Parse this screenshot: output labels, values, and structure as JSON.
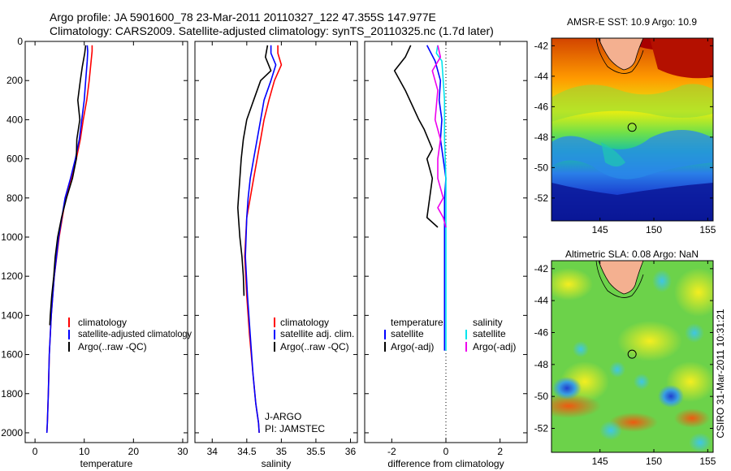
{
  "header": {
    "line1": "Argo profile: JA 5901600_78 23-Mar-2011 20110327_122 47.355S 147.977E",
    "line2": "Climatology: CARS2009. Satellite-adjusted climatology: synTS_20110325.nc (1.7d later)"
  },
  "colors": {
    "climatology": "#ff0000",
    "satellite": "#0000ff",
    "argo": "#000000",
    "salinity_satellite": "#00e5ee",
    "salinity_argo": "#ee00ee"
  },
  "chart_data": [
    {
      "type": "line",
      "panel": "temperature",
      "xlabel": "temperature",
      "ylabel": "",
      "xlim": [
        -2,
        31
      ],
      "ylim": [
        2050,
        0
      ],
      "xticks": [
        0,
        10,
        20,
        30
      ],
      "yticks": [
        0,
        200,
        400,
        600,
        800,
        1000,
        1200,
        1400,
        1600,
        1800,
        2000
      ],
      "xtick_labels": [
        "0",
        "10",
        "20",
        "30"
      ],
      "ytick_labels": [
        "0",
        "200",
        "400",
        "600",
        "800",
        "1000",
        "1200",
        "1400",
        "1600",
        "1800",
        "2000"
      ],
      "legend": [
        "climatology",
        "satellite-adjusted climatology",
        "Argo(..raw -QC)"
      ],
      "series": [
        {
          "name": "climatology",
          "color": "#ff0000",
          "x": [
            11.6,
            11.6,
            11.4,
            11.0,
            10.5,
            9.8,
            9.2,
            8.4,
            7.4,
            6.2,
            4.9,
            3.9,
            3.3,
            2.9,
            2.7,
            2.5,
            2.4
          ],
          "y": [
            20,
            50,
            100,
            200,
            300,
            400,
            500,
            600,
            700,
            800,
            1000,
            1200,
            1400,
            1600,
            1800,
            1950,
            2000
          ]
        },
        {
          "name": "satellite-adjusted climatology",
          "color": "#0000ff",
          "x": [
            10.6,
            10.7,
            10.6,
            10.3,
            10.0,
            9.5,
            9.0,
            8.2,
            7.2,
            6.1,
            4.8,
            3.9,
            3.3,
            2.9,
            2.7,
            2.5,
            2.4
          ],
          "y": [
            20,
            50,
            100,
            200,
            300,
            400,
            500,
            600,
            700,
            800,
            1000,
            1200,
            1400,
            1600,
            1800,
            1950,
            2000
          ]
        },
        {
          "name": "Argo(..raw -QC)",
          "color": "#000000",
          "x": [
            10.3,
            10.1,
            9.6,
            9.2,
            8.7,
            9.1,
            8.5,
            8.4,
            7.6,
            6.4,
            5.4,
            4.6,
            4.1,
            3.8,
            3.4,
            3.1,
            3.0
          ],
          "y": [
            20,
            60,
            130,
            200,
            300,
            400,
            500,
            600,
            700,
            800,
            900,
            1000,
            1100,
            1200,
            1300,
            1400,
            1450
          ]
        }
      ]
    },
    {
      "type": "line",
      "panel": "salinity",
      "xlabel": "salinity",
      "ylabel": "",
      "xlim": [
        33.75,
        36.1
      ],
      "ylim": [
        2050,
        0
      ],
      "xticks": [
        34,
        34.5,
        35,
        35.5,
        36
      ],
      "xtick_labels": [
        "34",
        "34.5",
        "35",
        "35.5",
        "36"
      ],
      "legend": [
        "climatology",
        "satellite adj. clim.",
        "Argo(..raw -QC)"
      ],
      "annotations": [
        "J-ARGO",
        "PI: JAMSTEC"
      ],
      "series": [
        {
          "name": "climatology",
          "color": "#ff0000",
          "x": [
            34.95,
            34.95,
            35.0,
            34.9,
            34.82,
            34.75,
            34.7,
            34.65,
            34.6,
            34.55,
            34.5,
            34.47,
            34.5,
            34.54,
            34.59,
            34.63,
            34.67,
            34.68
          ],
          "y": [
            20,
            60,
            120,
            200,
            300,
            400,
            500,
            600,
            700,
            800,
            900,
            1100,
            1300,
            1500,
            1700,
            1850,
            1950,
            2000
          ]
        },
        {
          "name": "satellite adj. clim.",
          "color": "#0000ff",
          "x": [
            34.85,
            34.85,
            34.92,
            34.85,
            34.75,
            34.7,
            34.65,
            34.6,
            34.55,
            34.52,
            34.5,
            34.48,
            34.51,
            34.55,
            34.59,
            34.63,
            34.67,
            34.68
          ],
          "y": [
            20,
            60,
            120,
            200,
            300,
            400,
            500,
            600,
            700,
            800,
            900,
            1100,
            1300,
            1500,
            1700,
            1850,
            1950,
            2000
          ]
        },
        {
          "name": "Argo(..raw -QC)",
          "color": "#000000",
          "x": [
            34.8,
            34.77,
            34.85,
            34.7,
            34.6,
            34.5,
            34.45,
            34.42,
            34.4,
            34.38,
            34.37,
            34.38,
            34.4,
            34.43,
            34.45,
            34.46
          ],
          "y": [
            20,
            80,
            150,
            200,
            300,
            400,
            500,
            600,
            700,
            800,
            850,
            900,
            1000,
            1100,
            1200,
            1300
          ]
        }
      ]
    },
    {
      "type": "line",
      "panel": "difference",
      "xlabel": "difference from climatology",
      "ylabel": "",
      "xlim": [
        -3,
        3
      ],
      "ylim": [
        2050,
        0
      ],
      "xticks": [
        -2,
        0,
        2
      ],
      "xtick_labels": [
        "-2",
        "0",
        "2"
      ],
      "legend_headers": [
        "temperature",
        "salinity"
      ],
      "legend": [
        "satellite",
        "Argo(-adj)",
        "satellite",
        "Argo(-adj)"
      ],
      "series": [
        {
          "name": "satellite",
          "color": "#0000ff",
          "x": [
            -0.7,
            -0.55,
            -0.4,
            -0.3,
            -0.2,
            -0.25,
            -0.15,
            -0.2,
            -0.1,
            0.0,
            -0.05,
            -0.05,
            -0.05,
            -0.05,
            -0.05,
            -0.05
          ],
          "y": [
            20,
            60,
            100,
            150,
            200,
            300,
            400,
            500,
            600,
            700,
            800,
            1000,
            1200,
            1400,
            1550,
            1580
          ]
        },
        {
          "name": "Argo(-adj)",
          "color": "#000000",
          "x": [
            -1.3,
            -1.5,
            -1.9,
            -1.5,
            -1.0,
            -0.8,
            -0.5,
            -0.7,
            -0.5,
            -0.6,
            -0.7,
            -0.3
          ],
          "y": [
            20,
            80,
            150,
            250,
            400,
            450,
            550,
            600,
            700,
            800,
            900,
            950
          ]
        },
        {
          "name": "satellite",
          "color": "#00e5ee",
          "x": [
            -0.3,
            -0.35,
            -0.15,
            -0.1,
            -0.05,
            -0.05,
            0.0,
            0.0,
            0.0,
            0.0,
            0.0,
            0.0,
            0.0,
            0.0
          ],
          "y": [
            20,
            60,
            100,
            200,
            300,
            500,
            700,
            800,
            950,
            1000,
            1200,
            1400,
            1550,
            1580
          ]
        },
        {
          "name": "Argo(-adj)",
          "color": "#ee00ee",
          "x": [
            -0.3,
            -0.2,
            -0.5,
            -0.3,
            -0.4,
            -0.2,
            -0.3,
            -0.3,
            -0.1,
            -0.3,
            -0.1,
            0.0
          ],
          "y": [
            20,
            80,
            150,
            250,
            400,
            500,
            600,
            700,
            800,
            850,
            900,
            950
          ]
        }
      ]
    },
    {
      "type": "heatmap",
      "panel": "map-sst",
      "title": "AMSR-E SST: 10.9 Argo: 10.9",
      "xlim": [
        140.5,
        155.5
      ],
      "ylim": [
        -53.5,
        -41.5
      ],
      "xticks": [
        145,
        150,
        155
      ],
      "yticks": [
        -42,
        -44,
        -46,
        -48,
        -50,
        -52
      ],
      "xtick_labels": [
        "145",
        "150",
        "155"
      ],
      "ytick_labels": [
        "-42",
        "-44",
        "-46",
        "-48",
        "-50",
        "-52"
      ],
      "float_position": {
        "lon": 147.977,
        "lat": -47.355
      }
    },
    {
      "type": "heatmap",
      "panel": "map-sla",
      "title": "Altimetric SLA: 0.08 Argo: NaN",
      "xlim": [
        140.5,
        155.5
      ],
      "ylim": [
        -53.5,
        -41.5
      ],
      "xticks": [
        145,
        150,
        155
      ],
      "yticks": [
        -42,
        -44,
        -46,
        -48,
        -50,
        -52
      ],
      "xtick_labels": [
        "145",
        "150",
        "155"
      ],
      "ytick_labels": [
        "-42",
        "-44",
        "-46",
        "-48",
        "-50",
        "-52"
      ],
      "float_position": {
        "lon": 147.977,
        "lat": -47.355
      }
    }
  ],
  "credit": "CSIRO 31-Mar-2011 10:31:21"
}
